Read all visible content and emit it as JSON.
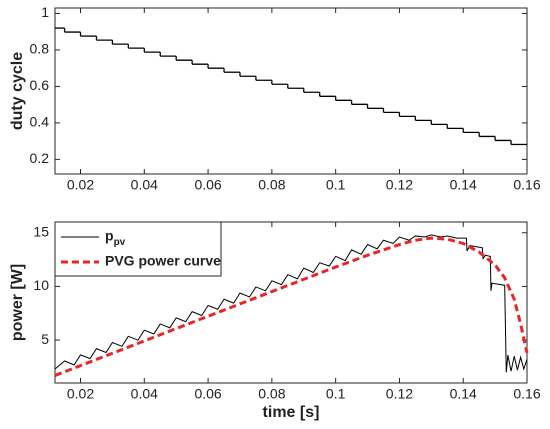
{
  "chart_data": [
    {
      "type": "line",
      "ylabel": "duty cycle",
      "drawstyle": "steps-post",
      "xlim": [
        0.012,
        0.16
      ],
      "xticks": [
        0.02,
        0.04,
        0.06,
        0.08,
        0.1,
        0.12,
        0.14,
        0.16
      ],
      "ylim": [
        0.12,
        1.03
      ],
      "yticks": [
        0.2,
        0.4,
        0.6,
        0.8,
        1
      ],
      "grid": false,
      "series": [
        {
          "name": null,
          "color": "#000000",
          "x": [
            0.012,
            0.015,
            0.02,
            0.025,
            0.03,
            0.035,
            0.04,
            0.045,
            0.05,
            0.055,
            0.06,
            0.065,
            0.07,
            0.075,
            0.08,
            0.085,
            0.09,
            0.095,
            0.1,
            0.105,
            0.11,
            0.115,
            0.12,
            0.125,
            0.13,
            0.135,
            0.14,
            0.145,
            0.15,
            0.155,
            0.16
          ],
          "values": [
            0.92,
            0.898,
            0.876,
            0.854,
            0.832,
            0.81,
            0.788,
            0.766,
            0.744,
            0.722,
            0.7,
            0.678,
            0.656,
            0.634,
            0.612,
            0.59,
            0.568,
            0.546,
            0.524,
            0.502,
            0.48,
            0.458,
            0.436,
            0.414,
            0.392,
            0.37,
            0.348,
            0.326,
            0.304,
            0.282,
            0.282
          ]
        }
      ]
    },
    {
      "type": "line",
      "xlabel": "time [s]",
      "ylabel": "power [W]",
      "xlim": [
        0.012,
        0.16
      ],
      "xticks": [
        0.02,
        0.04,
        0.06,
        0.08,
        0.1,
        0.12,
        0.14,
        0.16
      ],
      "ylim": [
        1,
        16
      ],
      "yticks": [
        5,
        10,
        15
      ],
      "grid": false,
      "legend": "upper left",
      "series": [
        {
          "name": "ppv",
          "color": "#000000",
          "dash": false,
          "x": [
            0.012,
            0.015,
            0.018,
            0.02,
            0.023,
            0.025,
            0.028,
            0.03,
            0.033,
            0.035,
            0.038,
            0.04,
            0.043,
            0.045,
            0.048,
            0.05,
            0.053,
            0.055,
            0.058,
            0.06,
            0.063,
            0.065,
            0.068,
            0.07,
            0.073,
            0.075,
            0.078,
            0.08,
            0.083,
            0.085,
            0.088,
            0.09,
            0.093,
            0.095,
            0.098,
            0.1,
            0.103,
            0.105,
            0.108,
            0.11,
            0.113,
            0.115,
            0.118,
            0.12,
            0.123,
            0.125,
            0.128,
            0.13,
            0.133,
            0.135,
            0.138,
            0.141,
            0.1412,
            0.142,
            0.146,
            0.1462,
            0.147,
            0.1485,
            0.1487,
            0.149,
            0.153,
            0.1535,
            0.154,
            0.155,
            0.156,
            0.157,
            0.158,
            0.159,
            0.16
          ],
          "values": [
            2.3,
            3.05,
            2.69,
            3.62,
            3.27,
            4.2,
            3.84,
            4.77,
            4.42,
            5.35,
            4.99,
            5.92,
            5.57,
            6.5,
            6.14,
            7.07,
            6.72,
            7.65,
            7.29,
            8.22,
            7.87,
            8.8,
            8.44,
            9.37,
            9.02,
            9.95,
            9.59,
            10.52,
            10.17,
            11.1,
            10.7,
            11.7,
            11.3,
            12.2,
            11.9,
            12.8,
            12.4,
            13.4,
            13.0,
            13.9,
            13.5,
            14.3,
            14.0,
            14.6,
            14.3,
            14.7,
            14.6,
            14.8,
            14.6,
            14.7,
            14.5,
            14.5,
            13.3,
            13.8,
            13.6,
            12.6,
            12.9,
            12.8,
            9.6,
            10.3,
            10.1,
            2.0,
            3.6,
            2.1,
            3.5,
            2.2,
            3.4,
            2.3,
            3.2
          ]
        },
        {
          "name": "PVG power curve",
          "color": "#e8262a",
          "dash": true,
          "x": [
            0.012,
            0.02,
            0.04,
            0.06,
            0.08,
            0.1,
            0.11,
            0.12,
            0.125,
            0.13,
            0.135,
            0.14,
            0.145,
            0.15,
            0.153,
            0.156,
            0.158,
            0.16
          ],
          "values": [
            1.7,
            2.62,
            4.92,
            7.22,
            9.52,
            11.8,
            12.9,
            13.9,
            14.3,
            14.5,
            14.4,
            14.0,
            13.2,
            12.0,
            10.8,
            8.8,
            6.5,
            3.8
          ]
        }
      ]
    }
  ]
}
